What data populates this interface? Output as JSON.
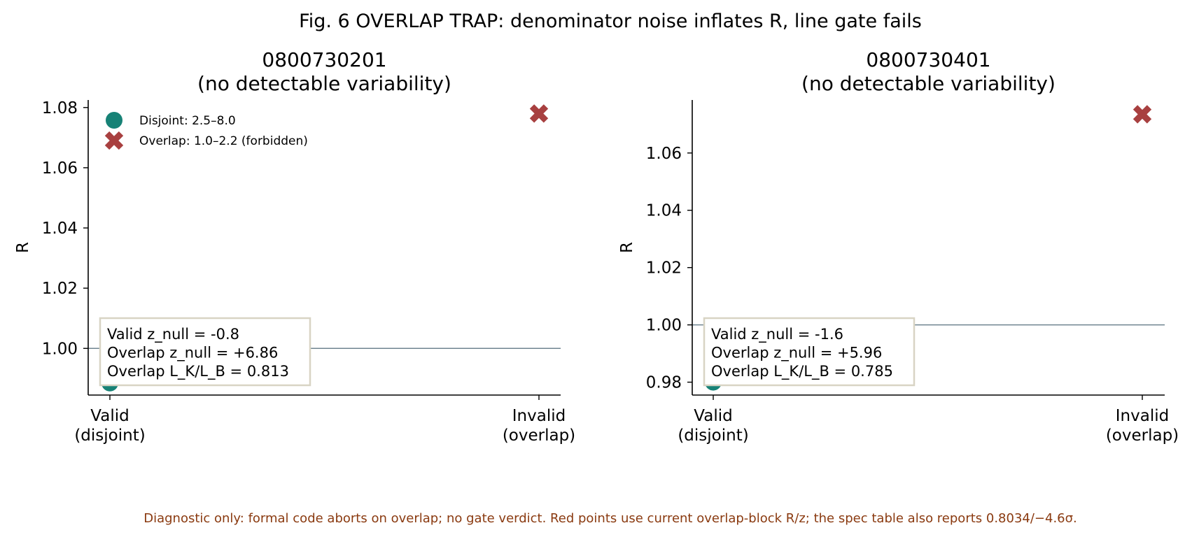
{
  "figure": {
    "title": "Fig. 6  OVERLAP TRAP: denominator noise inflates R, line gate fails",
    "footnote": "Diagnostic only: formal code aborts on overlap; no gate verdict. Red points use current overlap-block R/z; the spec table also reports 0.8034/−4.6σ.",
    "colors": {
      "valid": "#178276",
      "invalid": "#a84040",
      "reference_line": "#6f8490",
      "footnote": "#8a3a10",
      "annotation_border": "#d8d4c4"
    }
  },
  "chart_data": [
    {
      "type": "scatter",
      "title": "0800730201",
      "subtitle": "(no detectable variability)",
      "ylabel": "R",
      "xlabel": "",
      "categories": [
        "Valid\n(disjoint)",
        "Invalid\n(overlap)"
      ],
      "ylim": [
        0.9845,
        1.0825
      ],
      "yticks": [
        "1.08",
        "1.06",
        "1.04",
        "1.02",
        "1.00"
      ],
      "reference_line": 1.0,
      "grid": false,
      "legend_position": "upper-left",
      "series": [
        {
          "name": "Disjoint: 2.5–8.0",
          "marker": "circle",
          "category": "Valid\n(disjoint)",
          "value": 0.9885
        },
        {
          "name": "Overlap: 1.0–2.2 (forbidden)",
          "marker": "x",
          "category": "Invalid\n(overlap)",
          "value": 1.078
        }
      ],
      "annotation": [
        "Valid z_null = -0.8",
        "Overlap z_null = +6.86",
        "Overlap L_K/L_B = 0.813"
      ]
    },
    {
      "type": "scatter",
      "title": "0800730401",
      "subtitle": "(no detectable variability)",
      "ylabel": "R",
      "xlabel": "",
      "categories": [
        "Valid\n(disjoint)",
        "Invalid\n(overlap)"
      ],
      "ylim": [
        0.9755,
        1.0785
      ],
      "yticks": [
        "1.06",
        "1.04",
        "1.02",
        "1.00",
        "0.98"
      ],
      "reference_line": 1.0,
      "grid": false,
      "legend_position": "none",
      "series": [
        {
          "name": "Disjoint: 2.5–8.0",
          "marker": "circle",
          "category": "Valid\n(disjoint)",
          "value": 0.98
        },
        {
          "name": "Overlap: 1.0–2.2 (forbidden)",
          "marker": "x",
          "category": "Invalid\n(overlap)",
          "value": 1.0735
        }
      ],
      "annotation": [
        "Valid z_null = -1.6",
        "Overlap z_null = +5.96",
        "Overlap L_K/L_B = 0.785"
      ]
    }
  ]
}
